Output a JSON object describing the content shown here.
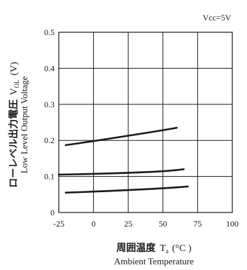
{
  "chart_data": {
    "type": "line",
    "annotation": "Vcc=5V",
    "x": {
      "label_jp": "周囲温度",
      "label_symbol": "T",
      "label_sub": "a",
      "label_unit": "(°C )",
      "label_en": "Ambient Temperature",
      "range": [
        -25,
        100
      ],
      "ticks": [
        -25,
        0,
        25,
        50,
        75,
        100
      ],
      "tick_labels": [
        "-25",
        "0",
        "25",
        "50",
        "75",
        "100"
      ]
    },
    "y": {
      "label_jp": "ローレベル出力電圧",
      "label_symbol": "V",
      "label_sub": "OL",
      "label_unit": "(V)",
      "label_en": "Low Level Output Voltage",
      "range": [
        0,
        0.5
      ],
      "ticks": [
        0,
        0.1,
        0.2,
        0.3,
        0.4,
        0.5
      ],
      "tick_labels": [
        "0",
        "0.1",
        "0.2",
        "0.3",
        "0.4",
        "0.5"
      ]
    },
    "grid": true,
    "series": [
      {
        "x": [
          -20,
          0,
          20,
          40,
          60
        ],
        "y": [
          0.187,
          0.198,
          0.21,
          0.222,
          0.235
        ]
      },
      {
        "x": [
          -25,
          0,
          25,
          50,
          65
        ],
        "y": [
          0.105,
          0.107,
          0.11,
          0.114,
          0.12
        ]
      },
      {
        "x": [
          -20,
          0,
          25,
          50,
          68
        ],
        "y": [
          0.055,
          0.058,
          0.062,
          0.067,
          0.072
        ]
      }
    ]
  },
  "colors": {
    "line": "#1a1a1a",
    "grid": "#1a1a1a",
    "background": "#ffffff"
  }
}
